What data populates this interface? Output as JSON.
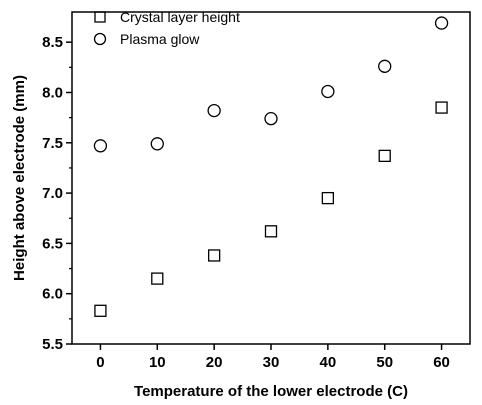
{
  "chart_data": {
    "type": "scatter",
    "title": "",
    "xlabel": "Temperature of the lower electrode (C)",
    "ylabel": "Height above electrode (mm)",
    "xlim": [
      -5,
      65
    ],
    "ylim": [
      5.5,
      8.8
    ],
    "x_ticks": [
      "0",
      "10",
      "20",
      "30",
      "40",
      "50",
      "60"
    ],
    "y_ticks": [
      "5.5",
      "6.0",
      "6.5",
      "7.0",
      "7.5",
      "8.0",
      "8.5"
    ],
    "grid": false,
    "legend_position": "top-left",
    "series": [
      {
        "name": "Crystal layer height",
        "marker": "square",
        "x": [
          0,
          10,
          20,
          30,
          40,
          50,
          60
        ],
        "y": [
          5.83,
          6.15,
          6.38,
          6.62,
          6.95,
          7.37,
          7.85
        ]
      },
      {
        "name": "Plasma glow",
        "marker": "circle",
        "x": [
          0,
          10,
          20,
          30,
          40,
          50,
          60
        ],
        "y": [
          7.47,
          7.49,
          7.82,
          7.74,
          8.01,
          8.26,
          8.69
        ]
      }
    ]
  }
}
